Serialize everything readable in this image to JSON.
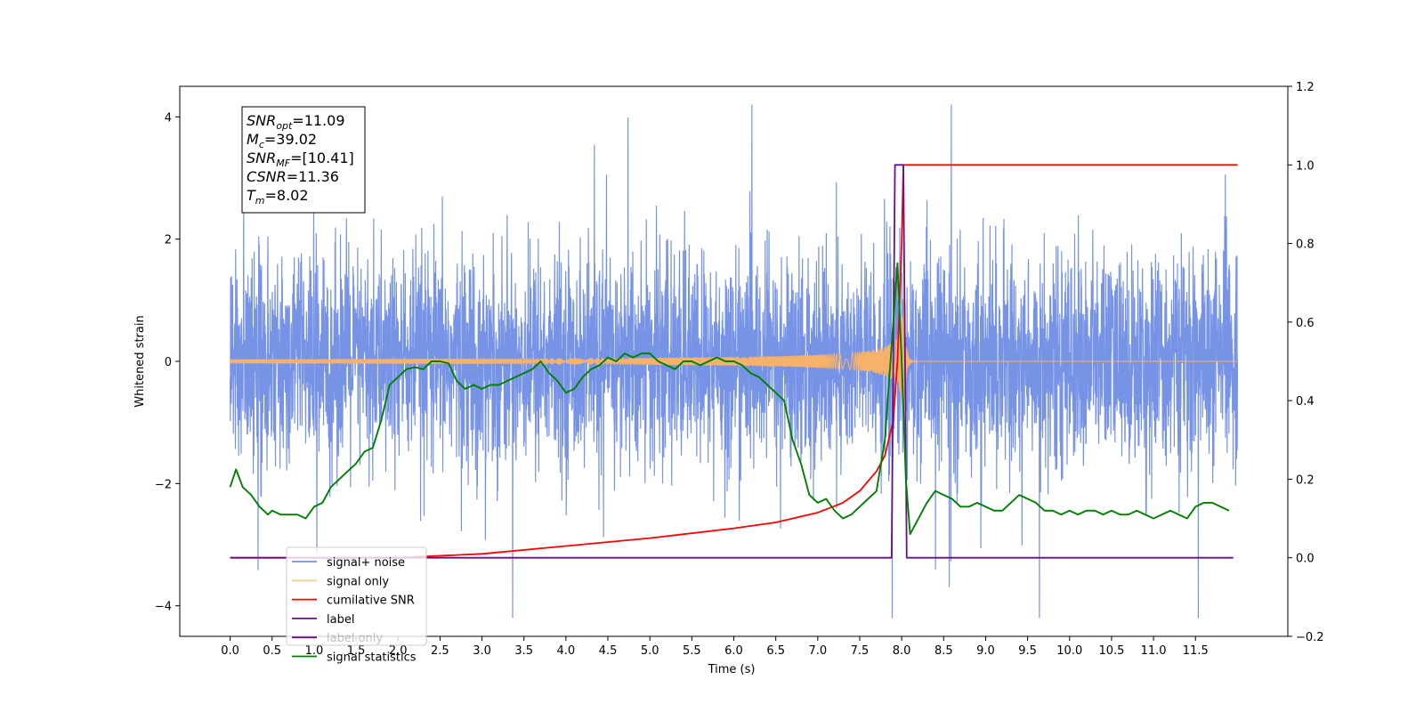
{
  "chart_data": {
    "type": "line",
    "title": "",
    "xlabel": "Time (s)",
    "ylabel": "Whitened strain",
    "xlim": [
      -0.6,
      12.6
    ],
    "ylim": [
      -4.5,
      4.5
    ],
    "y2lim": [
      -0.2,
      1.2
    ],
    "x_ticks": [
      "0.0",
      "0.5",
      "1.0",
      "1.5",
      "2.0",
      "2.5",
      "3.0",
      "3.5",
      "4.0",
      "4.5",
      "5.0",
      "5.5",
      "6.0",
      "6.5",
      "7.0",
      "7.5",
      "8.0",
      "8.5",
      "9.0",
      "9.5",
      "10.0",
      "10.5",
      "11.0",
      "11.5"
    ],
    "y_ticks": [
      "−4",
      "−2",
      "0",
      "2",
      "4"
    ],
    "y2_ticks": [
      "−0.2",
      "0.0",
      "0.2",
      "0.4",
      "0.6",
      "0.8",
      "1.0",
      "1.2"
    ],
    "grid": false,
    "legend_position": "lower-left",
    "annotation": {
      "lines": [
        {
          "base": "SNR",
          "sub": "opt",
          "rest": "=11.09"
        },
        {
          "base": "M",
          "sub": "c",
          "rest": "=39.02"
        },
        {
          "base": "SNR",
          "sub": "MF",
          "rest": "=[10.41]"
        },
        {
          "base": "CSNR",
          "sub": "",
          "rest": "=11.36"
        },
        {
          "base": "T",
          "sub": "m",
          "rest": "=8.02"
        }
      ]
    },
    "series": [
      {
        "name": "signal+ noise",
        "axis": "left",
        "color": "#7793e6",
        "noise_std": 0.85,
        "span": [
          0.0,
          12.0
        ]
      },
      {
        "name": "signal only",
        "axis": "left",
        "color": "#f6b26b",
        "chirp_peak_time": 8.02,
        "peak_amplitude": 1.1
      },
      {
        "name": "cumilative SNR",
        "axis": "right",
        "color": "#ff0000",
        "x": [
          0.0,
          2.0,
          3.0,
          4.0,
          5.0,
          6.0,
          6.5,
          7.0,
          7.3,
          7.5,
          7.7,
          7.8,
          7.9,
          7.95,
          8.0,
          8.02,
          12.0
        ],
        "y": [
          0.0,
          0.0,
          0.01,
          0.03,
          0.05,
          0.075,
          0.09,
          0.115,
          0.14,
          0.17,
          0.22,
          0.26,
          0.35,
          0.5,
          0.8,
          1.0,
          1.0
        ]
      },
      {
        "name": "label",
        "axis": "right",
        "color": "#6b0f86",
        "x": [
          0.0,
          7.88,
          7.92,
          8.02,
          8.06,
          11.95
        ],
        "y": [
          0.0,
          0.0,
          1.0,
          1.0,
          0.0,
          0.0
        ]
      },
      {
        "name": "label only",
        "axis": "right",
        "color": "#6b0f86",
        "hidden": true
      },
      {
        "name": "signal statistics",
        "axis": "right",
        "color": "#008000",
        "x": [
          0.0,
          0.07,
          0.15,
          0.25,
          0.35,
          0.45,
          0.5,
          0.6,
          0.7,
          0.8,
          0.9,
          1.0,
          1.1,
          1.2,
          1.3,
          1.4,
          1.5,
          1.6,
          1.7,
          1.8,
          1.9,
          2.0,
          2.1,
          2.2,
          2.3,
          2.4,
          2.5,
          2.6,
          2.7,
          2.8,
          2.9,
          3.0,
          3.1,
          3.2,
          3.3,
          3.4,
          3.5,
          3.6,
          3.7,
          3.8,
          3.9,
          4.0,
          4.1,
          4.2,
          4.3,
          4.4,
          4.5,
          4.6,
          4.7,
          4.8,
          4.9,
          5.0,
          5.1,
          5.2,
          5.3,
          5.4,
          5.5,
          5.6,
          5.7,
          5.8,
          5.9,
          6.0,
          6.1,
          6.2,
          6.3,
          6.4,
          6.5,
          6.6,
          6.7,
          6.8,
          6.9,
          7.0,
          7.1,
          7.2,
          7.3,
          7.4,
          7.5,
          7.6,
          7.7,
          7.8,
          7.9,
          7.95,
          8.0,
          8.05,
          8.1,
          8.2,
          8.3,
          8.4,
          8.5,
          8.6,
          8.7,
          8.8,
          8.9,
          9.0,
          9.1,
          9.2,
          9.3,
          9.4,
          9.5,
          9.6,
          9.7,
          9.8,
          9.9,
          10.0,
          10.1,
          10.2,
          10.3,
          10.4,
          10.5,
          10.6,
          10.7,
          10.8,
          10.9,
          11.0,
          11.1,
          11.2,
          11.3,
          11.4,
          11.5,
          11.6,
          11.7,
          11.8,
          11.9
        ],
        "y": [
          0.18,
          0.225,
          0.18,
          0.16,
          0.13,
          0.11,
          0.12,
          0.11,
          0.11,
          0.11,
          0.1,
          0.13,
          0.14,
          0.18,
          0.2,
          0.22,
          0.24,
          0.27,
          0.28,
          0.35,
          0.44,
          0.46,
          0.48,
          0.485,
          0.48,
          0.5,
          0.5,
          0.495,
          0.45,
          0.43,
          0.44,
          0.43,
          0.44,
          0.44,
          0.45,
          0.46,
          0.47,
          0.48,
          0.5,
          0.47,
          0.45,
          0.42,
          0.43,
          0.46,
          0.48,
          0.49,
          0.51,
          0.5,
          0.52,
          0.51,
          0.52,
          0.52,
          0.5,
          0.49,
          0.48,
          0.5,
          0.5,
          0.49,
          0.5,
          0.51,
          0.5,
          0.5,
          0.49,
          0.47,
          0.46,
          0.44,
          0.42,
          0.4,
          0.3,
          0.24,
          0.16,
          0.14,
          0.15,
          0.12,
          0.1,
          0.11,
          0.13,
          0.15,
          0.17,
          0.3,
          0.6,
          0.75,
          0.5,
          0.2,
          0.06,
          0.1,
          0.14,
          0.17,
          0.16,
          0.15,
          0.13,
          0.13,
          0.14,
          0.13,
          0.12,
          0.12,
          0.14,
          0.16,
          0.15,
          0.14,
          0.12,
          0.12,
          0.11,
          0.12,
          0.11,
          0.12,
          0.12,
          0.11,
          0.12,
          0.11,
          0.11,
          0.12,
          0.11,
          0.1,
          0.11,
          0.12,
          0.11,
          0.1,
          0.13,
          0.14,
          0.14,
          0.13,
          0.12
        ]
      }
    ]
  }
}
